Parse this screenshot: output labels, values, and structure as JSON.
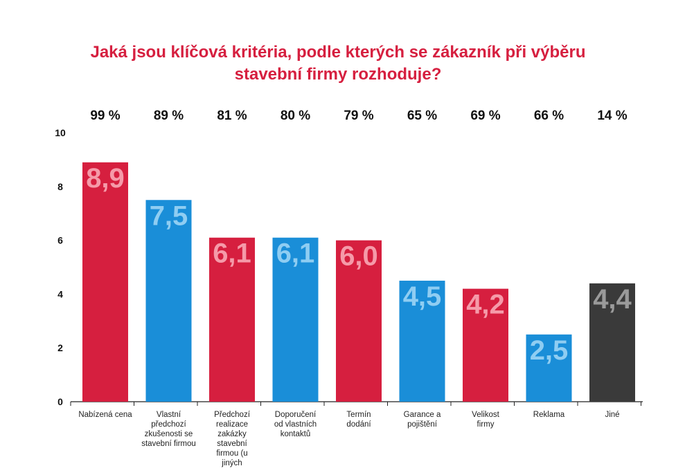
{
  "chart_data": {
    "type": "bar",
    "title_lines": [
      "Jaká jsou klíčová kritéria, podle kterých se zákazník při výběru",
      "stavební firmy rozhoduje?"
    ],
    "categories": [
      [
        "Nabízená cena"
      ],
      [
        "Vlastní",
        "předchozí",
        "zkušenosti se",
        "stavební firmou"
      ],
      [
        "Předchozí",
        "realizace",
        "zakázky",
        "stavební",
        "firmou (u",
        "jiných"
      ],
      [
        "Doporučení",
        "od vlastních",
        "kontaktů"
      ],
      [
        "Termín",
        "dodání"
      ],
      [
        "Garance a",
        "pojištění"
      ],
      [
        "Velikost",
        "firmy"
      ],
      [
        "Reklama"
      ],
      [
        "Jiné"
      ]
    ],
    "values": [
      8.9,
      7.5,
      6.1,
      6.1,
      6.0,
      4.5,
      4.2,
      2.5,
      4.4
    ],
    "value_labels": [
      "8,9",
      "7,5",
      "6,1",
      "6,1",
      "6,0",
      "4,5",
      "4,2",
      "2,5",
      "4,4"
    ],
    "percentages": [
      "99 %",
      "89 %",
      "81 %",
      "80 %",
      "79 %",
      "65 %",
      "69 %",
      "66 %",
      "14 %"
    ],
    "bar_colors": [
      "#d61f3f",
      "#1a8ed8",
      "#d61f3f",
      "#1a8ed8",
      "#d61f3f",
      "#1a8ed8",
      "#d61f3f",
      "#1a8ed8",
      "#3a3a3a"
    ],
    "value_label_colors": [
      "#f59aa9",
      "#8fcdf2",
      "#f59aa9",
      "#8fcdf2",
      "#f59aa9",
      "#8fcdf2",
      "#f59aa9",
      "#8fcdf2",
      "#9a9a9a"
    ],
    "yticks": [
      "0",
      "2",
      "4",
      "6",
      "8",
      "10"
    ],
    "ylim": [
      0,
      10
    ],
    "grid": false,
    "legend": "none"
  }
}
